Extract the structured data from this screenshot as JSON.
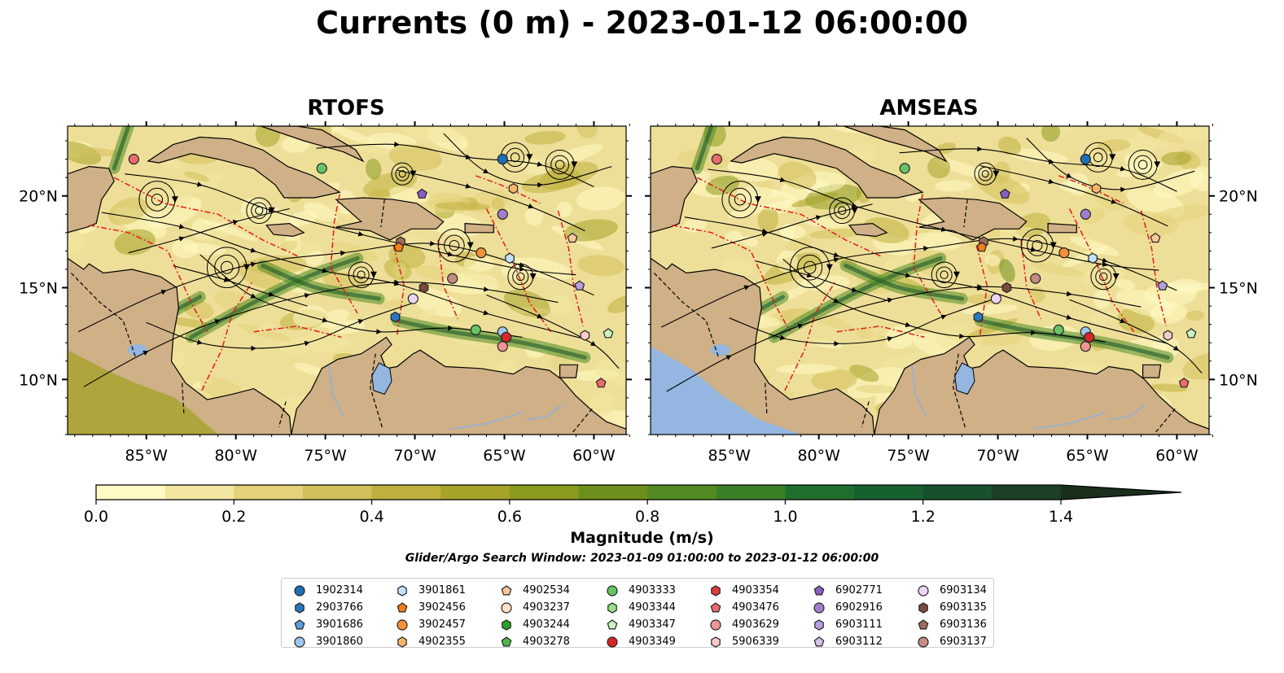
{
  "title": "Currents (0 m) - 2023-01-12 06:00:00",
  "panels": [
    {
      "title": "RTOFS",
      "ocean_far_west": "sand"
    },
    {
      "title": "AMSEAS",
      "ocean_far_west": "blue"
    }
  ],
  "lon_ticks": [
    "85°W",
    "80°W",
    "75°W",
    "70°W",
    "65°W",
    "60°W"
  ],
  "lat_ticks": [
    "20°N",
    "15°N",
    "10°N"
  ],
  "colorbar": {
    "label": "Magnitude (m/s)",
    "ticks": [
      "0.0",
      "0.2",
      "0.4",
      "0.6",
      "0.8",
      "1.0",
      "1.2",
      "1.4"
    ],
    "range": [
      0,
      1.6
    ],
    "extend": "max",
    "colors": [
      "#fff9c4",
      "#f2e5a0",
      "#e3d17c",
      "#d3bf5b",
      "#bfb03e",
      "#a6a32a",
      "#8c9a1f",
      "#6d8f1c",
      "#548a22",
      "#3b8026",
      "#1f6f2e",
      "#176030",
      "#18502c",
      "#1c3f25",
      "#1a2e1c"
    ]
  },
  "search_window": "Glider/Argo Search Window: 2023-01-09 01:00:00 to 2023-01-12 06:00:00",
  "legend": [
    [
      {
        "id": "1902314",
        "marker": "circle",
        "color": "#1f6fb4"
      },
      {
        "id": "2903766",
        "marker": "hexagon",
        "color": "#2a78c2"
      },
      {
        "id": "3901686",
        "marker": "pentagon",
        "color": "#5aa0dc"
      },
      {
        "id": "3901860",
        "marker": "circle",
        "color": "#9cc8ef"
      }
    ],
    [
      {
        "id": "3901861",
        "marker": "hexagon",
        "color": "#c0e2fa"
      },
      {
        "id": "3902456",
        "marker": "pentagon",
        "color": "#f07f18"
      },
      {
        "id": "3902457",
        "marker": "circle",
        "color": "#f39238"
      },
      {
        "id": "4902355",
        "marker": "hexagon",
        "color": "#f8b26a"
      }
    ],
    [
      {
        "id": "4902534",
        "marker": "pentagon",
        "color": "#fac79b"
      },
      {
        "id": "4903237",
        "marker": "circle",
        "color": "#fde0c6"
      },
      {
        "id": "4903244",
        "marker": "hexagon",
        "color": "#2ca02c"
      },
      {
        "id": "4903278",
        "marker": "pentagon",
        "color": "#4fb84f"
      }
    ],
    [
      {
        "id": "4903333",
        "marker": "circle",
        "color": "#66c466"
      },
      {
        "id": "4903344",
        "marker": "hexagon",
        "color": "#98df8a"
      },
      {
        "id": "4903347",
        "marker": "pentagon",
        "color": "#c9f2c0"
      },
      {
        "id": "4903349",
        "marker": "circle",
        "color": "#d62728"
      }
    ],
    [
      {
        "id": "4903354",
        "marker": "hexagon",
        "color": "#de3a3b"
      },
      {
        "id": "4903476",
        "marker": "pentagon",
        "color": "#ea6b6c"
      },
      {
        "id": "4903629",
        "marker": "circle",
        "color": "#f19495"
      },
      {
        "id": "5906339",
        "marker": "hexagon",
        "color": "#fbc9c9"
      }
    ],
    [
      {
        "id": "6902771",
        "marker": "pentagon",
        "color": "#8b5fc2"
      },
      {
        "id": "6902916",
        "marker": "circle",
        "color": "#a07fd0"
      },
      {
        "id": "6903111",
        "marker": "hexagon",
        "color": "#b79ee0"
      },
      {
        "id": "6903112",
        "marker": "pentagon",
        "color": "#d2c2ee"
      }
    ],
    [
      {
        "id": "6903134",
        "marker": "circle",
        "color": "#ecd5f6"
      },
      {
        "id": "6903135",
        "marker": "hexagon",
        "color": "#7a4a3a"
      },
      {
        "id": "6903136",
        "marker": "pentagon",
        "color": "#a06b5b"
      },
      {
        "id": "6903137",
        "marker": "circle",
        "color": "#c48c82"
      }
    ]
  ],
  "platform_positions": [
    {
      "lon": -85.7,
      "lat": 22.0,
      "marker": "circle",
      "color": "#ea6b6c"
    },
    {
      "lon": -75.2,
      "lat": 21.5,
      "marker": "circle",
      "color": "#66c466"
    },
    {
      "lon": -65.1,
      "lat": 22.0,
      "marker": "circle",
      "color": "#1f6fb4"
    },
    {
      "lon": -64.5,
      "lat": 20.4,
      "marker": "hexagon",
      "color": "#f8b26a"
    },
    {
      "lon": -69.6,
      "lat": 20.1,
      "marker": "pentagon",
      "color": "#8b5fc2"
    },
    {
      "lon": -65.1,
      "lat": 19.0,
      "marker": "circle",
      "color": "#a07fd0"
    },
    {
      "lon": -61.2,
      "lat": 17.7,
      "marker": "pentagon",
      "color": "#fac79b"
    },
    {
      "lon": -70.8,
      "lat": 17.5,
      "marker": "hexagon",
      "color": "#a06b5b"
    },
    {
      "lon": -70.9,
      "lat": 17.2,
      "marker": "pentagon",
      "color": "#f07f18"
    },
    {
      "lon": -66.3,
      "lat": 16.9,
      "marker": "circle",
      "color": "#f39238"
    },
    {
      "lon": -64.7,
      "lat": 16.6,
      "marker": "hexagon",
      "color": "#c0e2fa"
    },
    {
      "lon": -67.9,
      "lat": 15.5,
      "marker": "circle",
      "color": "#c48c82"
    },
    {
      "lon": -69.5,
      "lat": 15.0,
      "marker": "hexagon",
      "color": "#7a4a3a"
    },
    {
      "lon": -60.8,
      "lat": 15.1,
      "marker": "pentagon",
      "color": "#b79ee0"
    },
    {
      "lon": -70.1,
      "lat": 14.4,
      "marker": "circle",
      "color": "#ecd5f6"
    },
    {
      "lon": -71.1,
      "lat": 13.4,
      "marker": "hexagon",
      "color": "#2a78c2"
    },
    {
      "lon": -66.6,
      "lat": 12.7,
      "marker": "circle",
      "color": "#66c466"
    },
    {
      "lon": -65.1,
      "lat": 12.6,
      "marker": "circle",
      "color": "#9cc8ef"
    },
    {
      "lon": -64.9,
      "lat": 12.3,
      "marker": "circle",
      "color": "#d62728"
    },
    {
      "lon": -65.1,
      "lat": 11.8,
      "marker": "circle",
      "color": "#f19495"
    },
    {
      "lon": -60.5,
      "lat": 12.4,
      "marker": "hexagon",
      "color": "#fbc9c9"
    },
    {
      "lon": -59.2,
      "lat": 12.5,
      "marker": "pentagon",
      "color": "#c9f2c0"
    },
    {
      "lon": -59.6,
      "lat": 9.8,
      "marker": "pentagon",
      "color": "#ea6b6c"
    }
  ]
}
